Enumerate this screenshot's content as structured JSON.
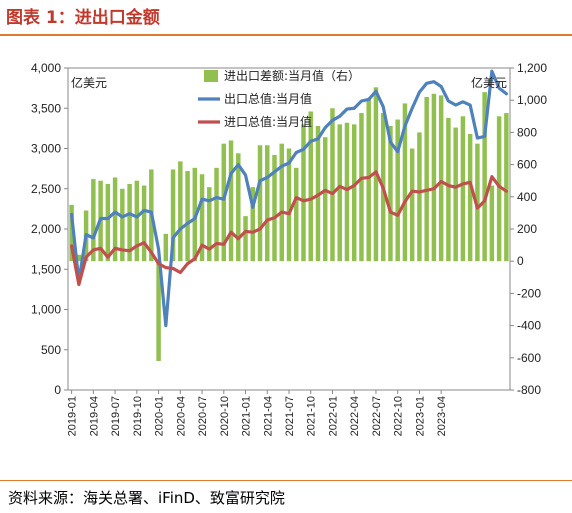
{
  "header": {
    "title": "图表 1：进出口金额"
  },
  "footer": {
    "source": "资料来源：海关总署、iFinD、致富研究院"
  },
  "colors": {
    "bar": "#92c050",
    "export": "#4f81bd",
    "import": "#c0504d",
    "rule": "#e07a2e",
    "title": "#c0392b"
  },
  "chart_data": {
    "type": "bar+line",
    "left_unit": "亿美元",
    "right_unit": "亿美元",
    "y_left": {
      "min": 0,
      "max": 4000,
      "step": 500,
      "tick_labels": [
        "0",
        "500",
        "1,000",
        "1,500",
        "2,000",
        "2,500",
        "3,000",
        "3,500",
        "4,000"
      ]
    },
    "y_right": {
      "min": -800,
      "max": 1200,
      "step": 200,
      "tick_labels": [
        "-800",
        "-600",
        "-400",
        "-200",
        "0",
        "200",
        "400",
        "600",
        "800",
        "1,000",
        "1,200"
      ]
    },
    "x_tick_labels": [
      "2019-01",
      "2019-04",
      "2019-07",
      "2019-10",
      "2020-01",
      "2020-04",
      "2020-07",
      "2020-10",
      "2021-01",
      "2021-04",
      "2021-07",
      "2021-10",
      "2022-01",
      "2022-04",
      "2022-07",
      "2022-10",
      "2023-01",
      "2023-04"
    ],
    "legend": {
      "placement": "top-center"
    },
    "series": [
      {
        "name": "进出口差额:当月值（右）",
        "type": "bar",
        "axis": "right",
        "values": [
          350,
          40,
          315,
          510,
          500,
          480,
          520,
          450,
          480,
          500,
          470,
          570,
          -620,
          170,
          570,
          620,
          560,
          580,
          540,
          460,
          580,
          730,
          750,
          670,
          280,
          460,
          720,
          720,
          660,
          730,
          700,
          580,
          850,
          930,
          840,
          770,
          950,
          850,
          860,
          850,
          920,
          1010,
          1080,
          920,
          840,
          880,
          980,
          700,
          800,
          1020,
          1040,
          1030,
          890,
          830,
          900,
          790,
          730,
          1050,
          470,
          900,
          920
        ]
      },
      {
        "name": "出口总值:当月值",
        "type": "line",
        "axis": "left",
        "values": [
          2180,
          1350,
          1930,
          1890,
          2130,
          2130,
          2210,
          2150,
          2190,
          2150,
          2230,
          2210,
          1750,
          800,
          1890,
          2000,
          2070,
          2130,
          2370,
          2350,
          2390,
          2370,
          2690,
          2800,
          2670,
          2270,
          2600,
          2640,
          2710,
          2780,
          2820,
          2950,
          2990,
          3090,
          3120,
          3260,
          3350,
          3400,
          3490,
          3500,
          3590,
          3610,
          3710,
          3520,
          3080,
          2960,
          3280,
          3500,
          3700,
          3810,
          3830,
          3770,
          3590,
          3540,
          3580,
          3540,
          3130,
          3150,
          3960,
          3750,
          3680
        ]
      },
      {
        "name": "进口总值:当月值",
        "type": "line",
        "axis": "left",
        "values": [
          1790,
          1310,
          1650,
          1740,
          1760,
          1650,
          1760,
          1740,
          1730,
          1790,
          1830,
          1710,
          1570,
          1520,
          1510,
          1460,
          1570,
          1630,
          1800,
          1750,
          1820,
          1810,
          1960,
          1880,
          1970,
          1960,
          2000,
          2110,
          2140,
          2210,
          2190,
          2390,
          2350,
          2370,
          2420,
          2480,
          2440,
          2530,
          2490,
          2540,
          2630,
          2640,
          2710,
          2510,
          2210,
          2170,
          2340,
          2470,
          2460,
          2480,
          2500,
          2590,
          2540,
          2520,
          2560,
          2580,
          2260,
          2350,
          2650,
          2530,
          2470
        ]
      }
    ]
  }
}
